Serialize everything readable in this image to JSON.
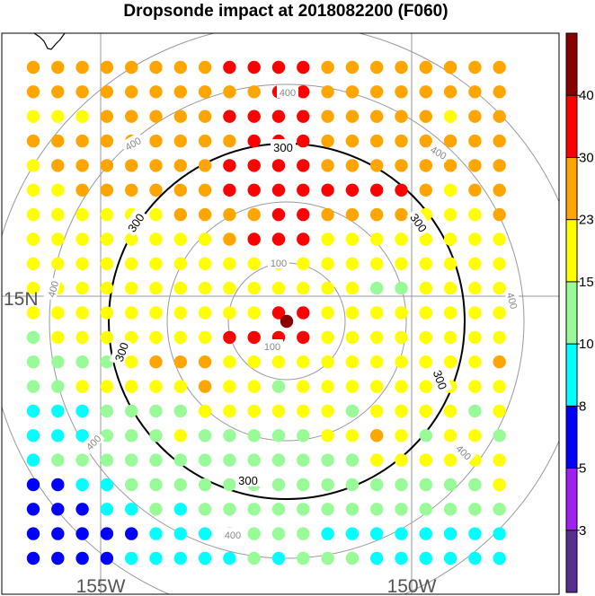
{
  "title": "Dropsonde impact at 2018082200 (F060)",
  "chart_data": {
    "type": "scatter",
    "description_grid": "20 columns x 21 rows of dropsonde locations, color = impact value bin",
    "colorbar": {
      "ticks": [
        "3",
        "5",
        "8",
        "10",
        "15",
        "23",
        "30",
        "40"
      ],
      "colors": [
        "#5a2d91",
        "#a020f0",
        "#0000ff",
        "#00ffff",
        "#98fb98",
        "#ffff00",
        "#ffa500",
        "#ff0000",
        "#8b0000"
      ]
    },
    "rows": [
      "66666666777766666666",
      "66666666667766666666",
      "55566666777766666566",
      "66666666677766666666",
      "56666666777766666666",
      "55666666777777776566",
      "55555566667766665556",
      "55555555677755555555",
      "55555555555555555555",
      "55555555555555445555",
      "55555555557755555555",
      "45555555777755555555",
      "44445666555555555556",
      "44555556554555555555",
      "33344445555554555545",
      "33344454444455654554",
      "34444444444444555555",
      "22334444444444444445",
      "22233434444444444444",
      "22222333444433333333",
      "22223333343444333333"
    ],
    "range_rings": {
      "thin": [
        "100",
        "200",
        "400",
        "500"
      ],
      "thick": "300"
    },
    "lon_labels": [
      "155W",
      "150W"
    ],
    "lat_labels": [
      "15N"
    ],
    "ring_labels_thin": [
      "100",
      "100",
      "400",
      "400",
      "400",
      "400",
      "400",
      "400"
    ],
    "ring_labels_thick": [
      "300",
      "300",
      "300",
      "300",
      "300",
      "300"
    ]
  }
}
